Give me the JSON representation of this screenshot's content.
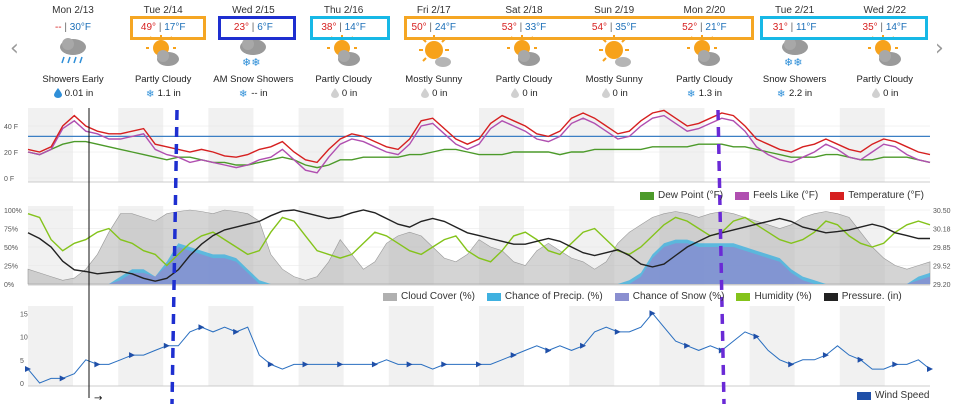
{
  "nav": {
    "prev_icon": "‹",
    "next_icon": "›"
  },
  "days": [
    {
      "date": "Mon 2/13",
      "hi": "--",
      "lo": "30°F",
      "icon": "rain-cloud",
      "condition": "Showers Early",
      "precip_icon": "rain",
      "precip": "0.01 in"
    },
    {
      "date": "Tue 2/14",
      "hi": "49°",
      "lo": "17°F",
      "icon": "partly-cloudy",
      "condition": "Partly Cloudy",
      "precip_icon": "snow",
      "precip": "1.1 in"
    },
    {
      "date": "Wed 2/15",
      "hi": "23°",
      "lo": "6°F",
      "icon": "snow-cloud",
      "condition": "AM Snow Showers",
      "precip_icon": "snow",
      "precip": "-- in"
    },
    {
      "date": "Thu 2/16",
      "hi": "38°",
      "lo": "14°F",
      "icon": "partly-cloudy",
      "condition": "Partly Cloudy",
      "precip_icon": "none",
      "precip": "0 in"
    },
    {
      "date": "Fri 2/17",
      "hi": "50°",
      "lo": "24°F",
      "icon": "mostly-sunny",
      "condition": "Mostly Sunny",
      "precip_icon": "none",
      "precip": "0 in"
    },
    {
      "date": "Sat 2/18",
      "hi": "53°",
      "lo": "33°F",
      "icon": "partly-cloudy",
      "condition": "Partly Cloudy",
      "precip_icon": "none",
      "precip": "0 in"
    },
    {
      "date": "Sun 2/19",
      "hi": "54°",
      "lo": "35°F",
      "icon": "mostly-sunny",
      "condition": "Mostly Sunny",
      "precip_icon": "none",
      "precip": "0 in"
    },
    {
      "date": "Mon 2/20",
      "hi": "52°",
      "lo": "21°F",
      "icon": "partly-cloudy",
      "condition": "Partly Cloudy",
      "precip_icon": "snow",
      "precip": "1.3 in"
    },
    {
      "date": "Tue 2/21",
      "hi": "31°",
      "lo": "11°F",
      "icon": "snow-cloud",
      "condition": "Snow Showers",
      "precip_icon": "snow",
      "precip": "2.2 in"
    },
    {
      "date": "Wed 2/22",
      "hi": "35°",
      "lo": "14°F",
      "icon": "partly-cloudy",
      "condition": "Partly Cloudy",
      "precip_icon": "none",
      "precip": "0 in"
    }
  ],
  "temp_chart": {
    "y_ticks": [
      "40 F",
      "20 F",
      "0 F"
    ],
    "legend": [
      "Dew Point (°F)",
      "Feels Like (°F)",
      "Temperature (°F)"
    ],
    "colors": {
      "dew": "#4c9a2a",
      "feels": "#b04fb0",
      "temp": "#d62020"
    },
    "temperature": [
      22,
      20,
      24,
      40,
      48,
      40,
      36,
      34,
      34,
      36,
      38,
      26,
      24,
      22,
      20,
      22,
      20,
      17,
      16,
      18,
      22,
      24,
      28,
      20,
      14,
      12,
      22,
      30,
      34,
      32,
      28,
      24,
      22,
      30,
      44,
      46,
      38,
      30,
      26,
      30,
      42,
      48,
      44,
      40,
      34,
      32,
      36,
      46,
      50,
      46,
      40,
      34,
      36,
      44,
      50,
      52,
      46,
      40,
      42,
      46,
      50,
      48,
      40,
      30,
      26,
      22,
      20,
      24,
      26,
      30,
      26,
      22,
      20,
      26,
      30,
      28,
      24,
      20,
      18
    ],
    "feels_like": [
      20,
      18,
      22,
      38,
      44,
      36,
      34,
      30,
      30,
      32,
      34,
      22,
      18,
      16,
      12,
      14,
      12,
      10,
      8,
      10,
      14,
      16,
      22,
      14,
      6,
      4,
      16,
      26,
      30,
      28,
      24,
      20,
      18,
      26,
      40,
      42,
      34,
      26,
      22,
      26,
      38,
      44,
      40,
      36,
      30,
      28,
      32,
      42,
      46,
      42,
      36,
      30,
      32,
      40,
      46,
      48,
      42,
      36,
      38,
      42,
      46,
      44,
      36,
      24,
      18,
      14,
      12,
      16,
      20,
      26,
      22,
      16,
      14,
      20,
      26,
      24,
      18,
      14,
      12
    ],
    "dew_point": [
      20,
      18,
      22,
      26,
      28,
      28,
      26,
      24,
      22,
      20,
      18,
      16,
      14,
      16,
      16,
      14,
      12,
      12,
      10,
      10,
      12,
      14,
      16,
      14,
      10,
      8,
      10,
      14,
      14,
      16,
      16,
      16,
      16,
      18,
      18,
      20,
      22,
      22,
      20,
      18,
      18,
      18,
      20,
      20,
      20,
      20,
      18,
      20,
      20,
      22,
      22,
      22,
      22,
      22,
      24,
      24,
      24,
      24,
      26,
      26,
      26,
      24,
      24,
      22,
      20,
      18,
      16,
      16,
      16,
      18,
      18,
      16,
      14,
      14,
      16,
      16,
      16,
      14,
      12
    ],
    "freezing_line": 32
  },
  "precip_chart": {
    "y_ticks_left": [
      "100%",
      "75%",
      "50%",
      "25%",
      "0%"
    ],
    "y_ticks_right": [
      "30.50",
      "30.18",
      "29.85",
      "29.52",
      "29.20"
    ],
    "legend": [
      "Cloud Cover (%)",
      "Chance of Precip. (%)",
      "Chance of Snow (%)",
      "Humidity (%)",
      "Pressure. (in)"
    ],
    "colors": {
      "cloud": "#b0b0b0",
      "precip": "#3fb1e0",
      "snow": "#8a8fd0",
      "humidity": "#84c31b",
      "pressure": "#222222"
    },
    "cloud_cover": [
      20,
      15,
      10,
      5,
      8,
      20,
      40,
      70,
      95,
      95,
      90,
      85,
      95,
      98,
      100,
      98,
      95,
      100,
      98,
      95,
      85,
      40,
      20,
      10,
      5,
      10,
      30,
      60,
      40,
      20,
      30,
      55,
      65,
      70,
      65,
      50,
      35,
      30,
      40,
      60,
      50,
      45,
      30,
      25,
      45,
      55,
      45,
      35,
      30,
      20,
      30,
      55,
      70,
      80,
      90,
      95,
      98,
      95,
      90,
      95,
      98,
      95,
      90,
      85,
      80,
      75,
      80,
      90,
      95,
      98,
      95,
      90,
      70,
      50,
      35,
      25,
      20,
      25,
      30
    ],
    "chance_precip": [
      0,
      0,
      0,
      0,
      0,
      0,
      0,
      0,
      10,
      20,
      20,
      10,
      30,
      55,
      50,
      45,
      40,
      40,
      35,
      20,
      5,
      0,
      0,
      0,
      0,
      0,
      0,
      0,
      0,
      0,
      0,
      0,
      0,
      0,
      0,
      0,
      0,
      0,
      0,
      0,
      0,
      0,
      0,
      0,
      0,
      0,
      0,
      0,
      0,
      0,
      0,
      0,
      5,
      15,
      40,
      55,
      60,
      60,
      55,
      55,
      55,
      55,
      50,
      45,
      40,
      35,
      20,
      10,
      5,
      0,
      0,
      0,
      0,
      0,
      0,
      0,
      0,
      10,
      15
    ],
    "chance_snow": [
      0,
      0,
      0,
      0,
      0,
      0,
      0,
      0,
      5,
      15,
      15,
      10,
      25,
      50,
      45,
      40,
      35,
      35,
      30,
      15,
      0,
      0,
      0,
      0,
      0,
      0,
      0,
      0,
      0,
      0,
      0,
      0,
      0,
      0,
      0,
      0,
      0,
      0,
      0,
      0,
      0,
      0,
      0,
      0,
      0,
      0,
      0,
      0,
      0,
      0,
      0,
      0,
      0,
      10,
      35,
      50,
      55,
      55,
      50,
      50,
      50,
      50,
      45,
      40,
      35,
      30,
      15,
      5,
      0,
      0,
      0,
      0,
      0,
      0,
      0,
      0,
      0,
      5,
      10
    ],
    "humidity": [
      95,
      90,
      60,
      45,
      55,
      60,
      70,
      75,
      60,
      55,
      45,
      40,
      25,
      40,
      55,
      65,
      70,
      60,
      50,
      40,
      45,
      70,
      90,
      85,
      65,
      45,
      40,
      35,
      40,
      55,
      70,
      65,
      55,
      45,
      40,
      50,
      60,
      65,
      45,
      35,
      30,
      45,
      65,
      70,
      60,
      45,
      40,
      55,
      70,
      75,
      60,
      45,
      40,
      50,
      65,
      80,
      90,
      85,
      75,
      65,
      70,
      85,
      90,
      80,
      70,
      60,
      55,
      60,
      70,
      85,
      80,
      65,
      55,
      50,
      55,
      70,
      80,
      85,
      80
    ],
    "pressure": [
      30.1,
      30.0,
      29.85,
      29.6,
      29.45,
      29.42,
      29.38,
      29.4,
      29.42,
      29.38,
      29.3,
      29.25,
      29.3,
      29.45,
      29.7,
      29.9,
      30.05,
      30.15,
      30.2,
      30.25,
      30.3,
      30.4,
      30.48,
      30.5,
      30.45,
      30.4,
      30.35,
      30.38,
      30.45,
      30.5,
      30.45,
      30.35,
      30.25,
      30.2,
      30.3,
      30.35,
      30.3,
      30.2,
      30.1,
      30.05,
      30.0,
      29.95,
      29.9,
      29.9,
      29.95,
      30.0,
      29.95,
      29.85,
      29.75,
      29.7,
      29.75,
      29.8,
      29.7,
      29.55,
      29.5,
      29.55,
      29.7,
      29.85,
      29.95,
      30.05,
      30.1,
      30.15,
      30.2,
      30.25,
      30.3,
      30.35,
      30.3,
      30.2,
      30.15,
      30.1,
      30.12,
      30.15,
      30.2,
      30.25,
      30.2,
      30.1,
      30.05,
      30.0,
      30.0
    ]
  },
  "wind_chart": {
    "y_ticks": [
      "15",
      "10",
      "5",
      "0"
    ],
    "legend": [
      "Wind Speed"
    ],
    "color": "#2a6fc0",
    "wind_speed": [
      3,
      0,
      1,
      1,
      2,
      5,
      4,
      4,
      5,
      6,
      6,
      7,
      8,
      8,
      11,
      12,
      11,
      12,
      11,
      12,
      6,
      4,
      3,
      4,
      4,
      4,
      4,
      4,
      4,
      4,
      4,
      5,
      4,
      4,
      4,
      3,
      4,
      4,
      4,
      4,
      4,
      5,
      6,
      7,
      8,
      7,
      8,
      7,
      8,
      11,
      12,
      11,
      11,
      12,
      15,
      12,
      9,
      8,
      7,
      8,
      7,
      9,
      11,
      10,
      7,
      5,
      4,
      5,
      5,
      6,
      8,
      6,
      5,
      3,
      3,
      4,
      4,
      5,
      3
    ]
  }
}
